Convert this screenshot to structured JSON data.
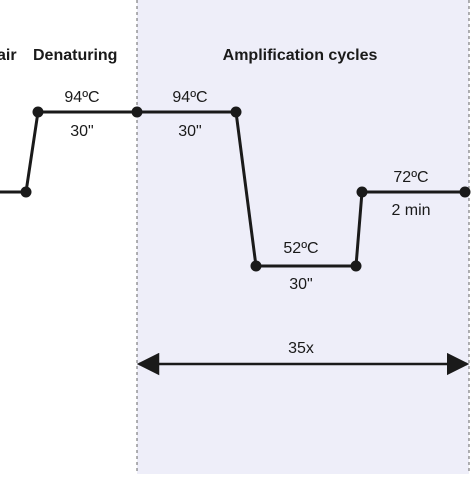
{
  "sections": {
    "denaturing_title_partial": "air",
    "denaturing_title": "Denaturing",
    "amplification_title": "Amplification cycles"
  },
  "steps": [
    {
      "temperature": "94ºC",
      "duration": "30\""
    },
    {
      "temperature": "94ºC",
      "duration": "30\""
    },
    {
      "temperature": "52ºC",
      "duration": "30\""
    },
    {
      "temperature": "72ºC",
      "duration": "2 min"
    }
  ],
  "cycles": {
    "label": "35x"
  },
  "colors": {
    "line": "#1a1a1a",
    "cycle_region": "#eeeef9",
    "region_border": "#666666"
  }
}
